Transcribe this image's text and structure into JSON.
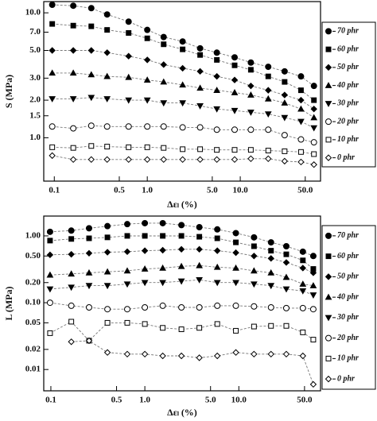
{
  "chart_data": [
    {
      "type": "line",
      "xlabel": "Δεₗ (%)",
      "ylabel": "S (MPa)",
      "xscale": "log",
      "yscale": "log",
      "xlim": [
        0.077,
        73
      ],
      "ylim": [
        0.45,
        12.3
      ],
      "xticks": [
        0.1,
        0.5,
        {
          "value": 1,
          "label": "1.0"
        },
        {
          "value": 5,
          "label": "5.0"
        },
        {
          "value": 10,
          "label": "10.0"
        },
        {
          "value": 50,
          "label": "50.0"
        }
      ],
      "yticks": [
        {
          "value": 1,
          "label": "1.0"
        },
        1.5,
        {
          "value": 2,
          "label": "2.0"
        },
        {
          "value": 3,
          "label": "3.0"
        },
        {
          "value": 5,
          "label": "5.0"
        },
        {
          "value": 7,
          "label": "7.0"
        },
        {
          "value": 10,
          "label": "10.0"
        }
      ],
      "x": [
        0.095,
        0.16,
        0.25,
        0.37,
        0.63,
        1.0,
        1.5,
        2.4,
        3.7,
        5.6,
        8.7,
        13,
        20,
        30,
        45,
        62
      ],
      "series": [
        {
          "name": "70 phr",
          "color": "#000000",
          "marker": "circle",
          "filled": true,
          "values": [
            11.6,
            11.4,
            10.9,
            9.7,
            8.5,
            7.3,
            6.4,
            5.9,
            5.2,
            4.8,
            4.4,
            4.0,
            3.7,
            3.4,
            3.1,
            2.6
          ]
        },
        {
          "name": "60 phr",
          "color": "#000000",
          "marker": "square",
          "filled": true,
          "values": [
            8.15,
            7.9,
            7.8,
            7.3,
            6.9,
            6.25,
            5.6,
            5.1,
            4.6,
            4.2,
            3.8,
            3.5,
            3.1,
            2.8,
            2.4,
            2.0
          ]
        },
        {
          "name": "50 phr",
          "color": "#000000",
          "marker": "diamond",
          "filled": true,
          "values": [
            5.0,
            5.0,
            5.0,
            4.8,
            4.5,
            4.2,
            3.85,
            3.6,
            3.4,
            3.1,
            2.9,
            2.6,
            2.4,
            2.2,
            2.0,
            1.7
          ]
        },
        {
          "name": "40 phr",
          "color": "#000000",
          "marker": "triangle-up",
          "filled": true,
          "values": [
            3.3,
            3.3,
            3.2,
            3.1,
            3.05,
            2.9,
            2.8,
            2.65,
            2.5,
            2.4,
            2.3,
            2.2,
            2.05,
            1.9,
            1.7,
            1.45
          ]
        },
        {
          "name": "30 phr",
          "color": "#000000",
          "marker": "triangle-down",
          "filled": true,
          "values": [
            2.05,
            2.05,
            2.1,
            2.05,
            2.0,
            2.0,
            1.9,
            1.9,
            1.8,
            1.7,
            1.65,
            1.6,
            1.55,
            1.45,
            1.35,
            1.2
          ]
        },
        {
          "name": "20 phr",
          "color": "#000000",
          "marker": "circle",
          "filled": false,
          "values": [
            1.23,
            1.19,
            1.25,
            1.23,
            1.23,
            1.23,
            1.23,
            1.21,
            1.21,
            1.16,
            1.16,
            1.16,
            1.16,
            1.05,
            0.97,
            0.92
          ]
        },
        {
          "name": "10 phr",
          "color": "#000000",
          "marker": "square",
          "filled": false,
          "values": [
            0.84,
            0.83,
            0.86,
            0.85,
            0.84,
            0.84,
            0.83,
            0.81,
            0.81,
            0.8,
            0.8,
            0.8,
            0.79,
            0.78,
            0.77,
            0.74
          ]
        },
        {
          "name": "0 phr",
          "color": "#000000",
          "marker": "diamond",
          "filled": false,
          "values": [
            0.72,
            0.67,
            0.67,
            0.67,
            0.67,
            0.67,
            0.67,
            0.67,
            0.67,
            0.67,
            0.67,
            0.68,
            0.68,
            0.65,
            0.64,
            0.61
          ]
        }
      ]
    },
    {
      "type": "line",
      "xlabel": "Δεₗ (%)",
      "ylabel": "L (MPa)",
      "xscale": "log",
      "yscale": "log",
      "xlim": [
        0.084,
        74
      ],
      "ylim": [
        0.0048,
        1.98
      ],
      "xticks": [
        0.1,
        0.5,
        {
          "value": 1,
          "label": "1.0"
        },
        {
          "value": 5,
          "label": "5.0"
        },
        {
          "value": 10,
          "label": "10.0"
        },
        {
          "value": 50,
          "label": "50.0"
        }
      ],
      "yticks": [
        0.01,
        0.02,
        0.05,
        {
          "value": 0.1,
          "label": "0.10"
        },
        {
          "value": 0.2,
          "label": "0.20"
        },
        {
          "value": 0.5,
          "label": "0.50"
        },
        {
          "value": 1,
          "label": "1.00"
        }
      ],
      "x": [
        0.098,
        0.165,
        0.255,
        0.4,
        0.65,
        1.0,
        1.55,
        2.45,
        3.8,
        5.9,
        9.3,
        14.5,
        22,
        32,
        48,
        62
      ],
      "series": [
        {
          "name": "70 phr",
          "color": "#000000",
          "marker": "circle",
          "filled": true,
          "values": [
            1.15,
            1.2,
            1.3,
            1.4,
            1.5,
            1.55,
            1.55,
            1.45,
            1.35,
            1.25,
            1.1,
            0.95,
            0.8,
            0.7,
            0.58,
            0.5
          ]
        },
        {
          "name": "60 phr",
          "color": "#000000",
          "marker": "square",
          "filled": true,
          "values": [
            0.85,
            0.9,
            0.92,
            0.95,
            1.0,
            1.0,
            1.0,
            1.0,
            0.97,
            0.92,
            0.8,
            0.7,
            0.6,
            0.53,
            0.43,
            0.32
          ]
        },
        {
          "name": "50 phr",
          "color": "#000000",
          "marker": "diamond",
          "filled": true,
          "values": [
            0.52,
            0.53,
            0.55,
            0.57,
            0.58,
            0.6,
            0.61,
            0.63,
            0.63,
            0.6,
            0.56,
            0.5,
            0.46,
            0.4,
            0.33,
            0.28
          ]
        },
        {
          "name": "40 phr",
          "color": "#000000",
          "marker": "triangle-up",
          "filled": true,
          "values": [
            0.26,
            0.27,
            0.28,
            0.29,
            0.3,
            0.32,
            0.33,
            0.35,
            0.36,
            0.34,
            0.33,
            0.3,
            0.28,
            0.24,
            0.19,
            0.18
          ]
        },
        {
          "name": "30 phr",
          "color": "#000000",
          "marker": "triangle-down",
          "filled": true,
          "values": [
            0.16,
            0.17,
            0.18,
            0.18,
            0.19,
            0.2,
            0.2,
            0.21,
            0.22,
            0.2,
            0.2,
            0.19,
            0.18,
            0.16,
            0.15,
            0.13
          ]
        },
        {
          "name": "20 phr",
          "color": "#000000",
          "marker": "circle",
          "filled": false,
          "values": [
            0.1,
            0.09,
            0.085,
            0.08,
            0.08,
            0.085,
            0.09,
            0.085,
            0.085,
            0.09,
            0.09,
            0.088,
            0.085,
            0.083,
            0.083,
            0.08
          ]
        },
        {
          "name": "10 phr",
          "color": "#000000",
          "marker": "square",
          "filled": false,
          "values": [
            0.035,
            0.052,
            0.027,
            0.05,
            0.05,
            0.048,
            0.042,
            0.04,
            0.042,
            0.048,
            0.038,
            0.044,
            0.045,
            0.045,
            0.036,
            0.028
          ]
        },
        {
          "name": "0 phr",
          "color": "#000000",
          "marker": "diamond",
          "filled": false,
          "values": [
            null,
            0.026,
            0.027,
            0.018,
            0.017,
            0.017,
            0.016,
            0.016,
            0.015,
            0.016,
            0.018,
            0.017,
            0.017,
            0.017,
            0.016,
            0.006
          ]
        }
      ]
    }
  ]
}
